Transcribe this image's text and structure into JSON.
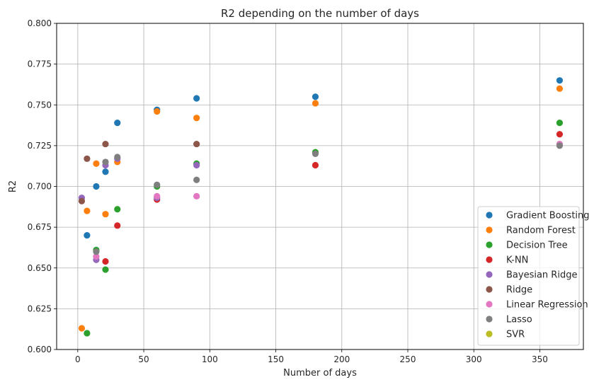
{
  "chart_data": {
    "type": "scatter",
    "title": "R2 depending on the number of days",
    "xlabel": "Number of days",
    "ylabel": "R2",
    "xlim": [
      -16,
      383
    ],
    "ylim": [
      0.6,
      0.8
    ],
    "x_ticks": [
      0,
      50,
      100,
      150,
      200,
      250,
      300,
      350
    ],
    "y_ticks": [
      0.6,
      0.625,
      0.65,
      0.675,
      0.7,
      0.725,
      0.75,
      0.775,
      0.8
    ],
    "x_tick_labels": [
      "0",
      "50",
      "100",
      "150",
      "200",
      "250",
      "300",
      "350"
    ],
    "y_tick_labels": [
      "0.600",
      "0.625",
      "0.650",
      "0.675",
      "0.700",
      "0.725",
      "0.750",
      "0.775",
      "0.800"
    ],
    "grid": true,
    "legend_position": "lower-right",
    "series": [
      {
        "name": "Gradient Boosting",
        "color": "#1f77b4",
        "points": [
          [
            7,
            0.67
          ],
          [
            14,
            0.7
          ],
          [
            21,
            0.709
          ],
          [
            30,
            0.739
          ],
          [
            60,
            0.747
          ],
          [
            90,
            0.754
          ],
          [
            180,
            0.755
          ],
          [
            365,
            0.765
          ]
        ]
      },
      {
        "name": "Random Forest",
        "color": "#ff7f0e",
        "points": [
          [
            3,
            0.613
          ],
          [
            7,
            0.685
          ],
          [
            14,
            0.714
          ],
          [
            21,
            0.683
          ],
          [
            30,
            0.715
          ],
          [
            60,
            0.746
          ],
          [
            90,
            0.742
          ],
          [
            180,
            0.751
          ],
          [
            365,
            0.76
          ]
        ]
      },
      {
        "name": "Decision Tree",
        "color": "#2ca02c",
        "points": [
          [
            7,
            0.61
          ],
          [
            14,
            0.661
          ],
          [
            21,
            0.649
          ],
          [
            30,
            0.686
          ],
          [
            60,
            0.7
          ],
          [
            90,
            0.714
          ],
          [
            180,
            0.721
          ],
          [
            365,
            0.739
          ]
        ]
      },
      {
        "name": "K-NN",
        "color": "#d62728",
        "points": [
          [
            21,
            0.654
          ],
          [
            30,
            0.676
          ],
          [
            60,
            0.692
          ],
          [
            180,
            0.713
          ],
          [
            365,
            0.732
          ]
        ]
      },
      {
        "name": "Bayesian Ridge",
        "color": "#9467bd",
        "points": [
          [
            3,
            0.693
          ],
          [
            14,
            0.655
          ],
          [
            21,
            0.713
          ],
          [
            30,
            0.717
          ],
          [
            60,
            0.693
          ],
          [
            90,
            0.713
          ],
          [
            365,
            0.726
          ]
        ]
      },
      {
        "name": "Ridge",
        "color": "#8c564b",
        "points": [
          [
            3,
            0.691
          ],
          [
            7,
            0.717
          ],
          [
            21,
            0.726
          ],
          [
            90,
            0.726
          ]
        ]
      },
      {
        "name": "Linear Regression",
        "color": "#e377c2",
        "points": [
          [
            14,
            0.657
          ],
          [
            60,
            0.694
          ],
          [
            90,
            0.694
          ],
          [
            365,
            0.726
          ]
        ]
      },
      {
        "name": "Lasso",
        "color": "#7f7f7f",
        "points": [
          [
            14,
            0.66
          ],
          [
            21,
            0.715
          ],
          [
            30,
            0.718
          ],
          [
            60,
            0.701
          ],
          [
            90,
            0.704
          ],
          [
            180,
            0.72
          ],
          [
            365,
            0.725
          ]
        ]
      },
      {
        "name": "SVR",
        "color": "#bcbd22",
        "points": []
      }
    ]
  }
}
